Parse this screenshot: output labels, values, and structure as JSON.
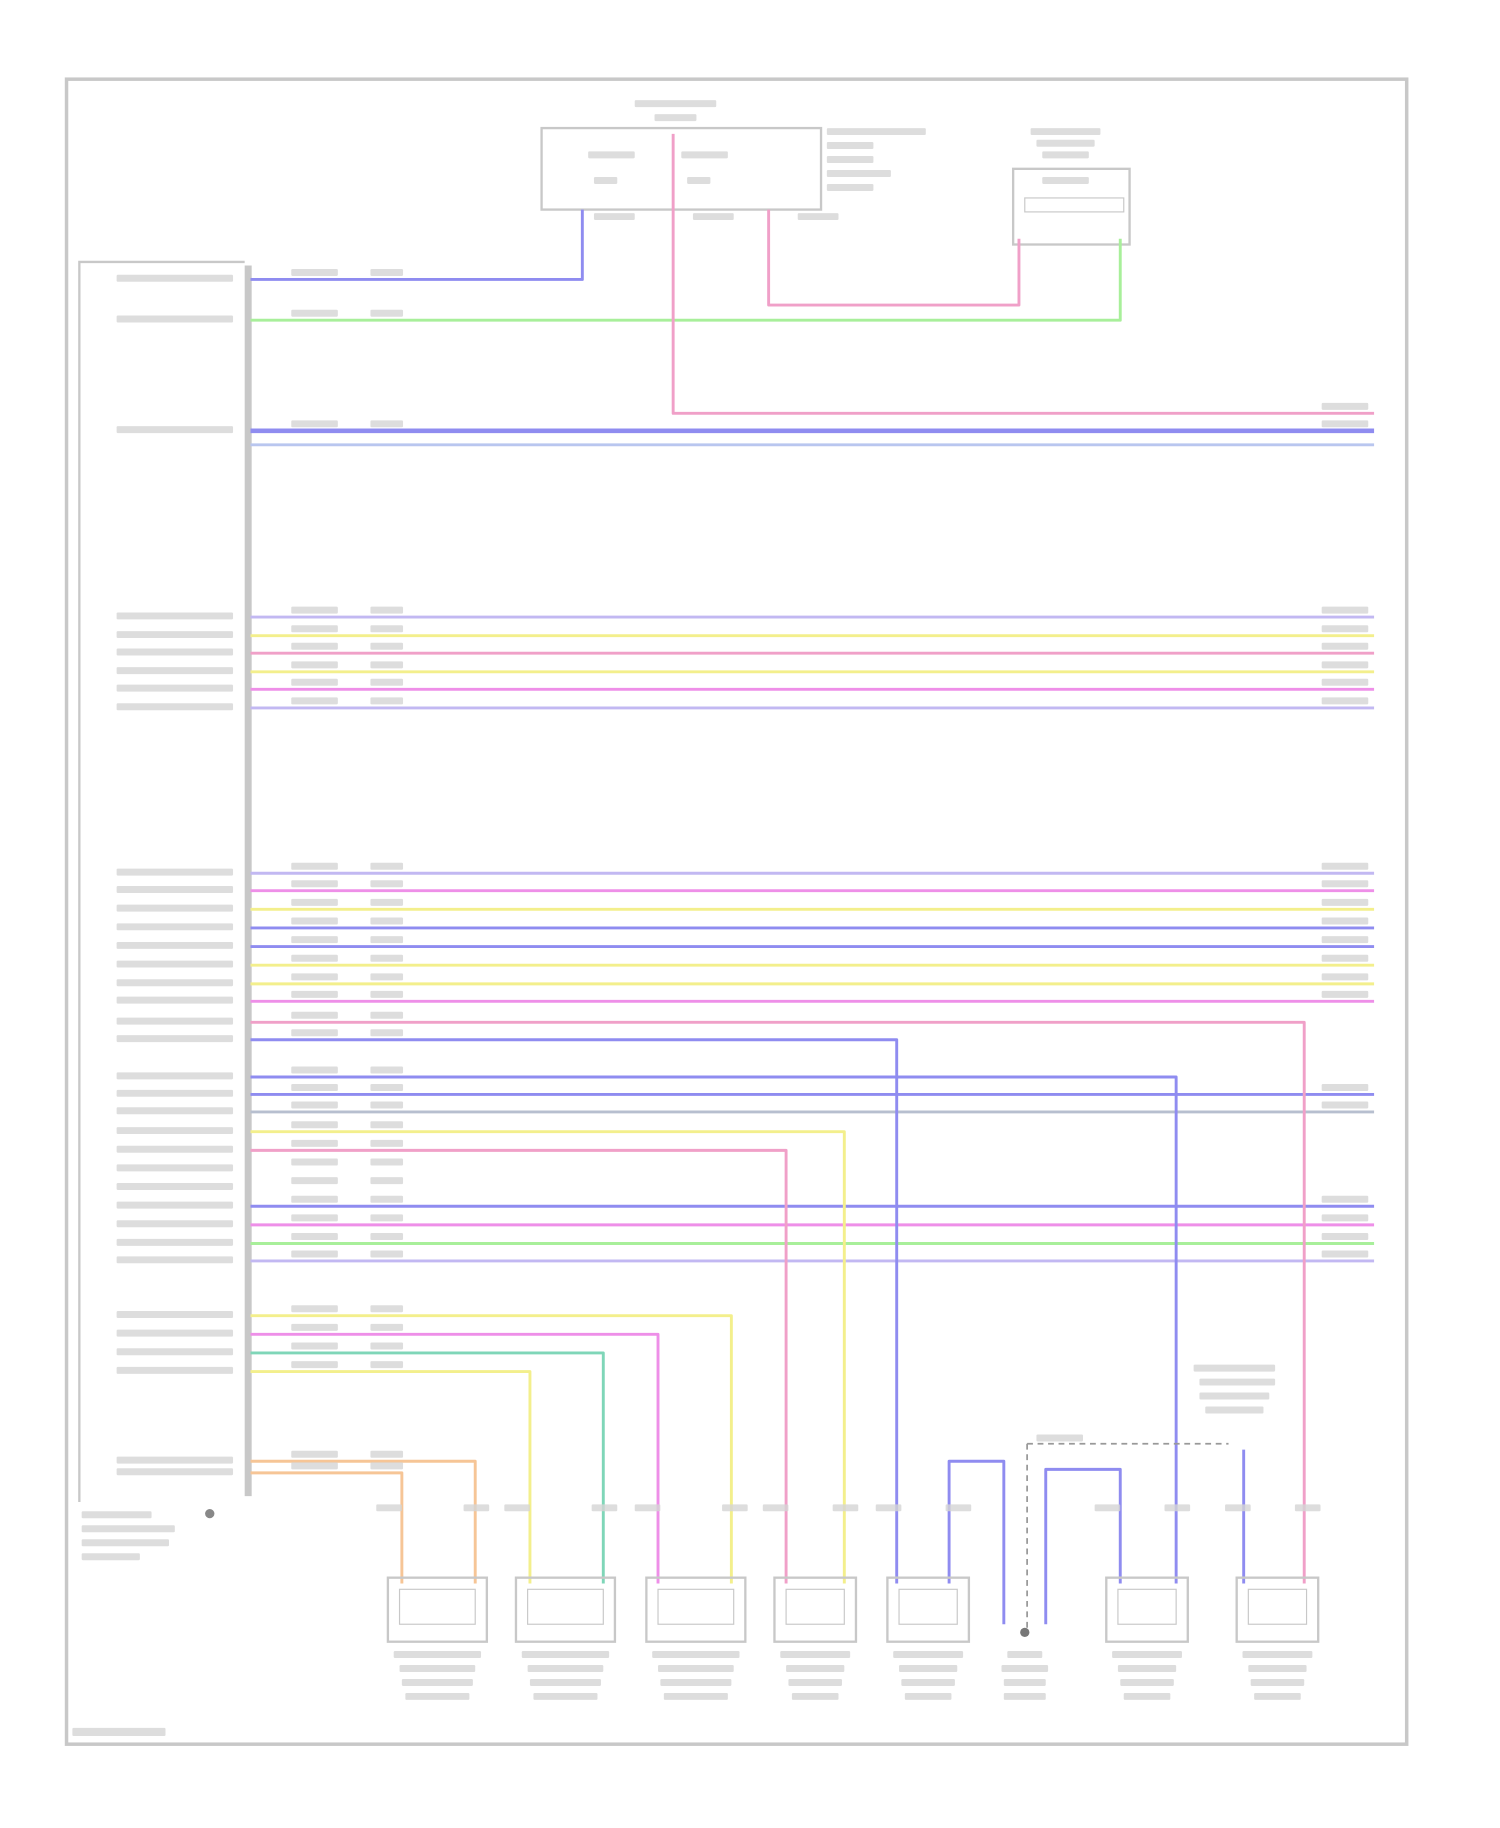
{
  "diagram": {
    "frame_color": "#c8c8c8",
    "label_color": "#d4d4d4",
    "wire_colors": {
      "blue": "#8f8cf0",
      "lightblue": "#b9c6ef",
      "green": "#a8ef9a",
      "pink": "#f0a0c8",
      "magenta": "#ee8fe8",
      "yellow": "#f3ef8c",
      "lavender": "#c2b8f2",
      "teal": "#7fd6b8",
      "orange": "#f6c596",
      "grey": "#b7bfcf"
    },
    "components": {
      "module_count": 1,
      "switch_count": 1,
      "sensor_count": 8,
      "ground_symbol": "ground-icon"
    }
  }
}
